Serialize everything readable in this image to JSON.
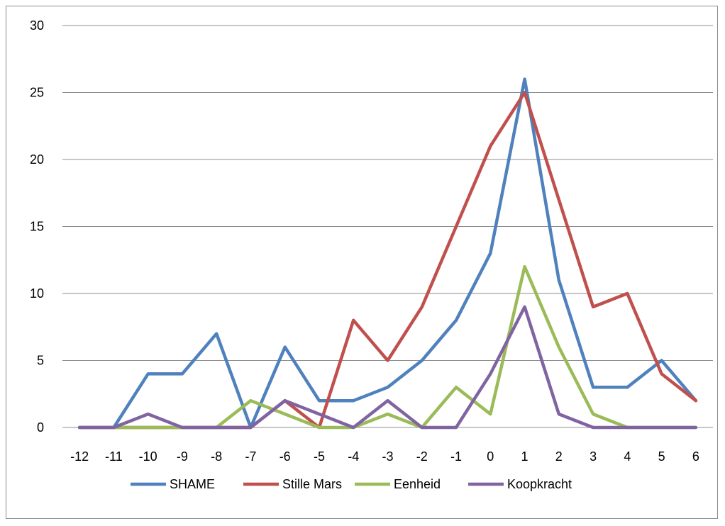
{
  "chart_data": {
    "type": "line",
    "title": "",
    "xlabel": "",
    "ylabel": "",
    "x": [
      -12,
      -11,
      -10,
      -9,
      -8,
      -7,
      -6,
      -5,
      -4,
      -3,
      -2,
      -1,
      0,
      1,
      2,
      3,
      4,
      5,
      6
    ],
    "x_tick_labels": [
      "-12",
      "-11",
      "-10",
      "-9",
      "-8",
      "-7",
      "-6",
      "-5",
      "-4",
      "-3",
      "-2",
      "-1",
      "0",
      "1",
      "2",
      "3",
      "4",
      "5",
      "6"
    ],
    "ylim": [
      0,
      30
    ],
    "y_ticks": [
      0,
      5,
      10,
      15,
      20,
      25,
      30
    ],
    "y_tick_labels": [
      "0",
      "5",
      "10",
      "15",
      "20",
      "25",
      "30"
    ],
    "grid": "horizontal",
    "legend_position": "bottom",
    "series": [
      {
        "name": "SHAME",
        "color": "#4f81bd",
        "values": [
          0,
          0,
          4,
          4,
          7,
          0,
          6,
          2,
          2,
          3,
          5,
          8,
          13,
          26,
          11,
          3,
          3,
          5,
          2
        ]
      },
      {
        "name": "Stille Mars",
        "color": "#c0504d",
        "values": [
          0,
          0,
          0,
          0,
          0,
          0,
          2,
          0,
          8,
          5,
          9,
          15,
          21,
          25,
          17,
          9,
          10,
          4,
          2
        ]
      },
      {
        "name": "Eenheid",
        "color": "#9bbb59",
        "values": [
          0,
          0,
          0,
          0,
          0,
          2,
          1,
          0,
          0,
          1,
          0,
          3,
          1,
          12,
          6,
          1,
          0,
          0,
          0
        ]
      },
      {
        "name": "Koopkracht",
        "color": "#8064a2",
        "values": [
          0,
          0,
          1,
          0,
          0,
          0,
          2,
          1,
          0,
          2,
          0,
          0,
          4,
          9,
          1,
          0,
          0,
          0,
          0
        ]
      }
    ]
  }
}
